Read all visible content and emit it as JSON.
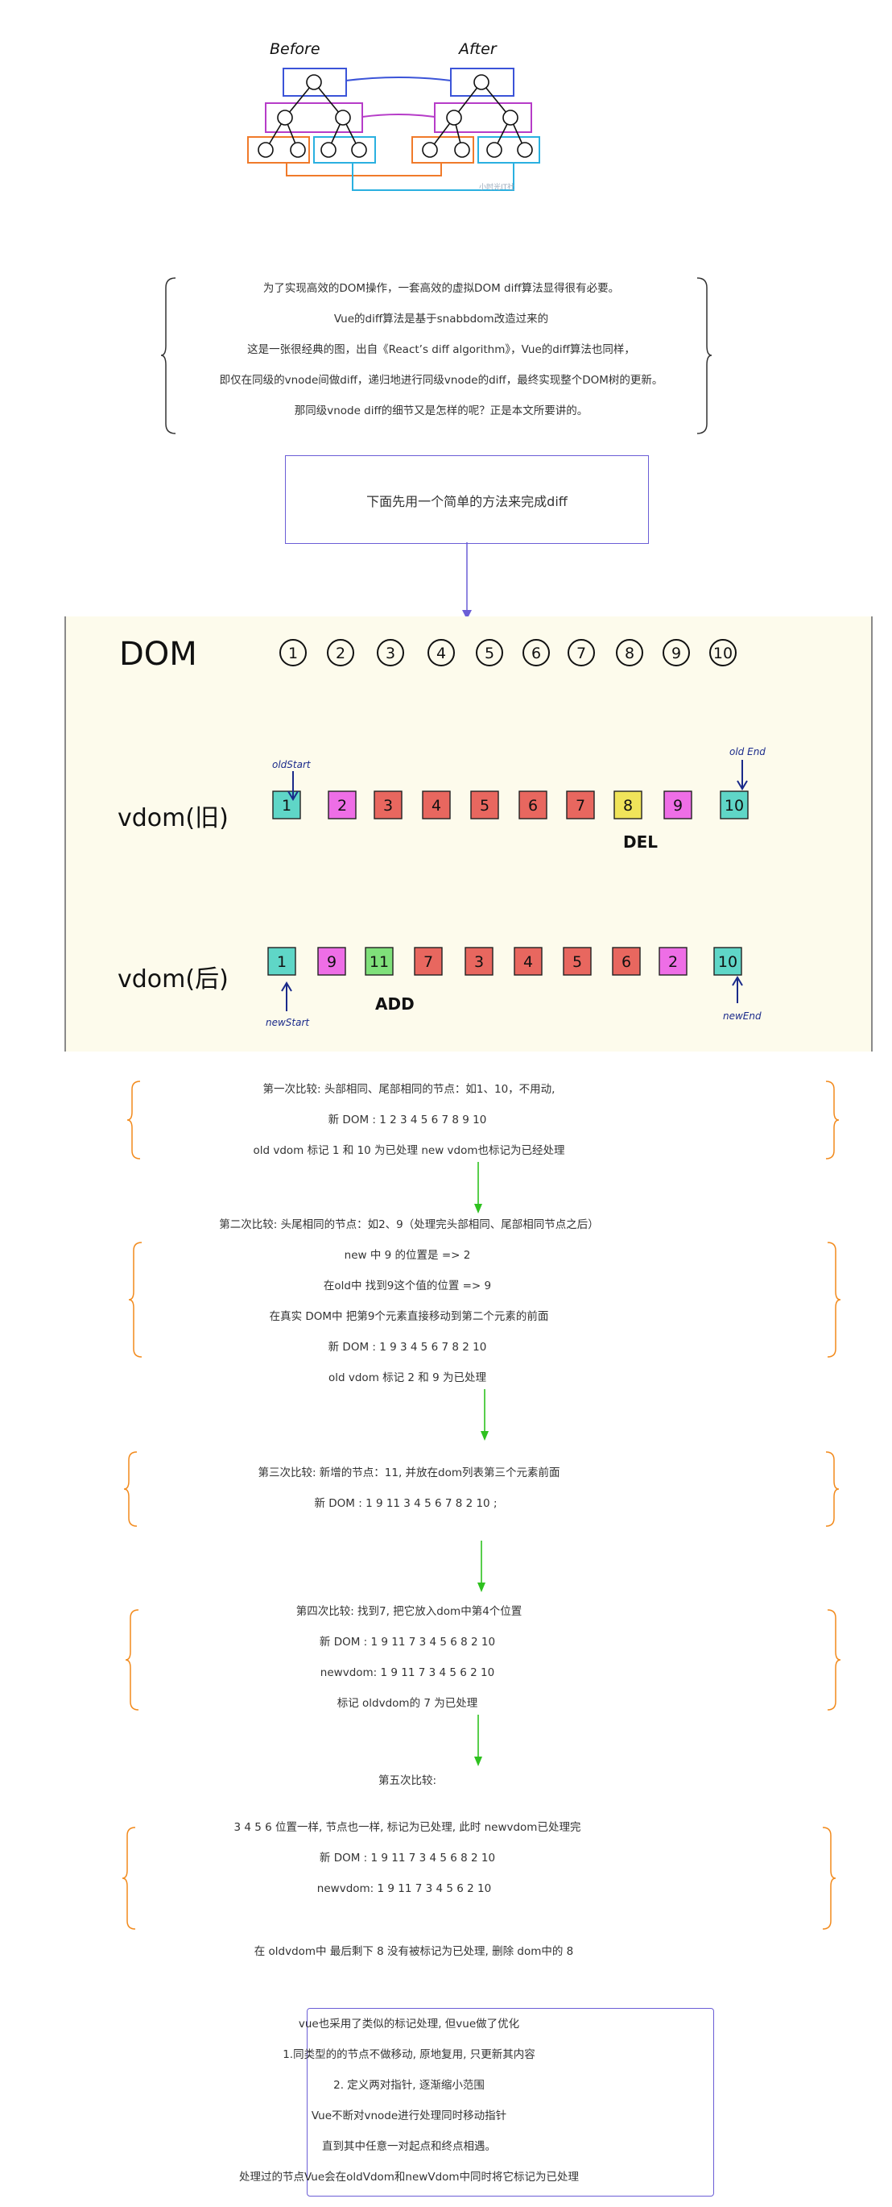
{
  "tree": {
    "before_label": "Before",
    "after_label": "After",
    "watermark": "小时光IT社"
  },
  "intro": {
    "lines": [
      "为了实现高效的DOM操作，一套高效的虚拟DOM diff算法显得很有必要。",
      "Vue的diff算法是基于snabbdom改造过来的",
      "这是一张很经典的图，出自《React’s diff algorithm》，Vue的diff算法也同样，",
      "即仅在同级的vnode间做diff，递归地进行同级vnode的diff，最终实现整个DOM树的更新。",
      "那同级vnode diff的细节又是怎样的呢？正是本文所要讲的。"
    ]
  },
  "method_box": {
    "label": "下面先用一个简单的方法来完成diff"
  },
  "panel": {
    "dom_label": "DOM",
    "dom_items": [
      "1",
      "2",
      "3",
      "4",
      "5",
      "6",
      "7",
      "8",
      "9",
      "10"
    ],
    "old_label": "vdom(旧)",
    "old_items": [
      "1",
      "2",
      "3",
      "4",
      "5",
      "6",
      "7",
      "8",
      "9",
      "10"
    ],
    "old_colors": [
      "#5fd6c7",
      "#ee6ee6",
      "#e8675f",
      "#e8675f",
      "#e8675f",
      "#e8675f",
      "#e8675f",
      "#f0e45a",
      "#ee6ee6",
      "#5fd6c7"
    ],
    "new_label": "vdom(后)",
    "new_items": [
      "1",
      "9",
      "11",
      "7",
      "3",
      "4",
      "5",
      "6",
      "2",
      "10"
    ],
    "new_colors": [
      "#5fd6c7",
      "#ee6ee6",
      "#7fe07a",
      "#e8675f",
      "#e8675f",
      "#e8675f",
      "#e8675f",
      "#e8675f",
      "#ee6ee6",
      "#5fd6c7"
    ],
    "old_start": "oldStart",
    "old_end": "old End",
    "new_start": "newStart",
    "new_end": "newEnd",
    "del": "DEL",
    "add": "ADD"
  },
  "steps": {
    "s1": [
      "第一次比较: 头部相同、尾部相同的节点：如1、10，不用动,",
      "新 DOM : 1  2  3    4   5  6  7  8  9  10",
      "old vdom 标记 1 和 10 为已处理      new vdom也标记为已经处理"
    ],
    "s2_title": "第二次比较: 头尾相同的节点：如2、9（处理完头部相同、尾部相同节点之后）",
    "s2": [
      "new 中 9 的位置是 => 2",
      "在old中 找到9这个值的位置   => 9",
      "在真实 DOM中 把第9个元素直接移动到第二个元素的前面",
      "新 DOM : 1 9 3 4 5 6 7 8 2 10",
      "old vdom 标记 2 和 9 为已处理"
    ],
    "s3": [
      "第三次比较: 新增的节点：11, 并放在dom列表第三个元素前面",
      "新 DOM : 1  9  11 3 4 5 6 7 8 2 10 ;"
    ],
    "s4": [
      "第四次比较: 找到7, 把它放入dom中第4个位置",
      "新 DOM : 1 9 11 7  3 4 5 6  8 2 10",
      "newvdom: 1 9 11 7 3 4 5  6  2  10",
      "标记 oldvdom的 7 为已处理"
    ],
    "s5_title": "第五次比较:",
    "s5": [
      "3 4 5 6  位置一样, 节点也一样, 标记为已处理, 此时 newvdom已处理完",
      "新 DOM : 1 9 11 7  3 4 5 6  8 2 10",
      "newvdom: 1 9 11 7 3    4  5  6  2  10"
    ],
    "final": "在 oldvdom中 最后剩下 8 没有被标记为已处理, 删除 dom中的 8"
  },
  "summary": {
    "lines": [
      "vue也采用了类似的标记处理, 但vue做了优化",
      "1.同类型的的节点不做移动, 原地复用, 只更新其内容",
      "2. 定义两对指针, 逐渐缩小范围",
      "Vue不断对vnode进行处理同时移动指针",
      "直到其中任意一对起点和终点相遇。",
      "处理过的节点Vue会在oldVdom和newVdom中同时将它标记为已处理"
    ]
  }
}
